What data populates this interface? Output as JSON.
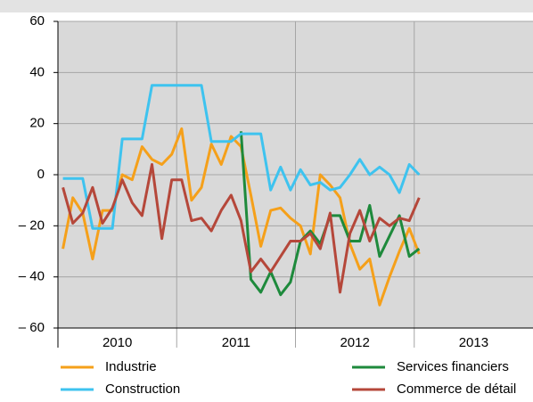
{
  "chart_data": {
    "type": "line",
    "categories": [
      null,
      null,
      null,
      null,
      null,
      null,
      null,
      null,
      null,
      null,
      null,
      null,
      null,
      null,
      null,
      null,
      null,
      null,
      null,
      null,
      null,
      null,
      null,
      null,
      null,
      null,
      null,
      null,
      null,
      null,
      null,
      null,
      null,
      null,
      null,
      null,
      null,
      null,
      null,
      null,
      null,
      null,
      null,
      null,
      null,
      null,
      null,
      null
    ],
    "year_labels": [
      "2010",
      "2011",
      "2012",
      "2013"
    ],
    "series": [
      {
        "name": "Industrie",
        "color": "#f5a01a",
        "values": [
          -29,
          -9,
          -15,
          -33,
          -14,
          -14,
          0,
          -2,
          11,
          6,
          4,
          8,
          18,
          -10,
          -5,
          12,
          4,
          15,
          11,
          -8,
          -28,
          -14,
          -13,
          -17,
          -20,
          -31,
          0,
          -4,
          -9,
          -27,
          -37,
          -33,
          -51,
          -40,
          -30,
          -21,
          -31,
          null,
          null,
          null,
          null,
          null,
          null,
          null,
          null,
          null,
          null,
          null
        ]
      },
      {
        "name": "Services financiers",
        "color": "#1e8a3c",
        "values": [
          null,
          null,
          null,
          null,
          null,
          null,
          null,
          null,
          null,
          null,
          null,
          null,
          null,
          null,
          null,
          null,
          null,
          null,
          17,
          -41,
          -46,
          -38,
          -47,
          -42,
          -26,
          -22,
          -27,
          -16,
          -16,
          -26,
          -26,
          -12,
          -32,
          -24,
          -16,
          -32,
          -29,
          null,
          null,
          null,
          null,
          null,
          null,
          null,
          null,
          null,
          null,
          null
        ]
      },
      {
        "name": "Construction",
        "color": "#3ec3ef",
        "values": [
          -1.5,
          -1.5,
          -1.5,
          -21,
          -21,
          -21,
          14,
          14,
          14,
          35,
          35,
          35,
          35,
          35,
          35,
          13,
          13,
          13,
          16,
          16,
          16,
          -6,
          3,
          -6,
          2,
          -4,
          -3,
          -6,
          -5,
          0,
          6,
          0,
          3,
          0,
          -7,
          4,
          0,
          null,
          null,
          null,
          null,
          null,
          null,
          null,
          null,
          null,
          null,
          null
        ]
      },
      {
        "name": "Commerce de détail",
        "color": "#b5473a",
        "values": [
          -5,
          -19,
          -15,
          -5,
          -19,
          -13,
          -2,
          -11,
          -16,
          4,
          -25,
          -2,
          -2,
          -18,
          -17,
          -22,
          -14,
          -8,
          -18,
          -38,
          -33,
          -38,
          -32,
          -26,
          -26,
          -23,
          -29,
          -15,
          -46,
          -23,
          -14,
          -26,
          -17,
          -20,
          -17,
          -18,
          -9,
          null,
          null,
          null,
          null,
          null,
          null,
          null,
          null,
          null,
          null,
          null
        ]
      }
    ],
    "ylim": [
      -60,
      60
    ],
    "yticks": [
      {
        "value": -60,
        "label": "– 60"
      },
      {
        "value": -40,
        "label": "– 40"
      },
      {
        "value": -20,
        "label": "– 20"
      },
      0,
      20,
      40,
      60
    ],
    "grid": true
  }
}
